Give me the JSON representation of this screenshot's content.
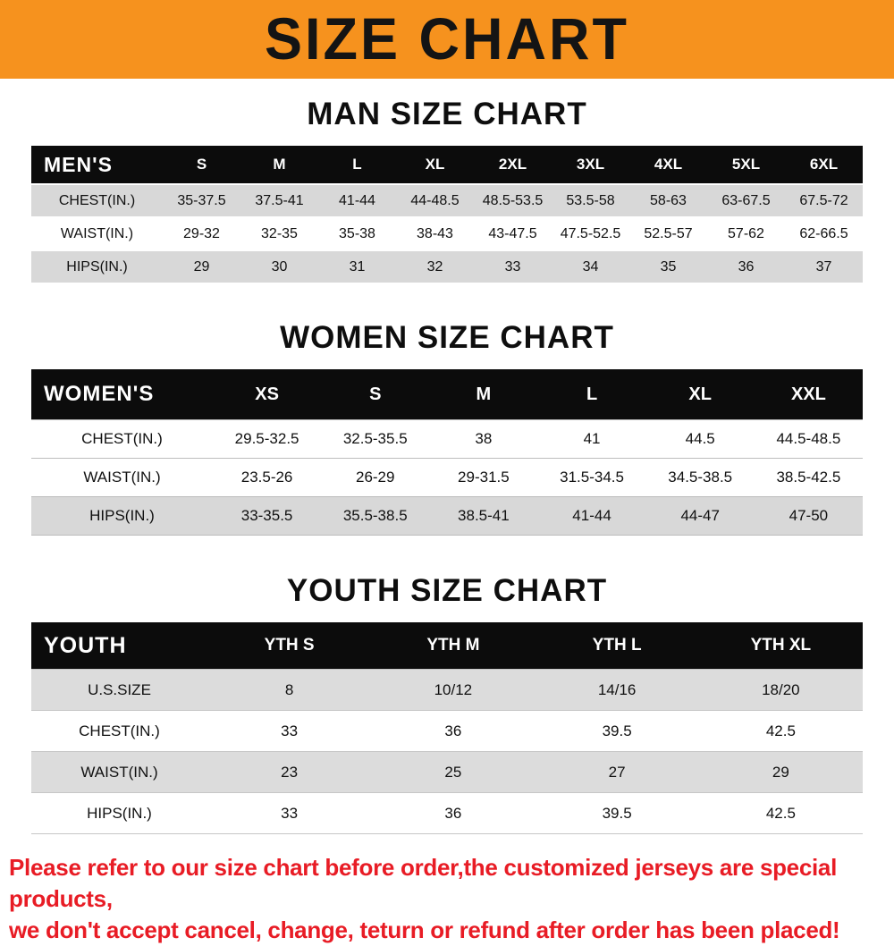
{
  "banner": {
    "title": "SIZE CHART",
    "bg_color": "#f6921e"
  },
  "chart_data": [
    {
      "type": "table",
      "title": "MAN SIZE CHART",
      "header": [
        "MEN'S",
        "S",
        "M",
        "L",
        "XL",
        "2XL",
        "3XL",
        "4XL",
        "5XL",
        "6XL"
      ],
      "rows": [
        [
          "CHEST(IN.)",
          "35-37.5",
          "37.5-41",
          "41-44",
          "44-48.5",
          "48.5-53.5",
          "53.5-58",
          "58-63",
          "63-67.5",
          "67.5-72"
        ],
        [
          "WAIST(IN.)",
          "29-32",
          "32-35",
          "35-38",
          "38-43",
          "43-47.5",
          "47.5-52.5",
          "52.5-57",
          "57-62",
          "62-66.5"
        ],
        [
          "HIPS(IN.)",
          "29",
          "30",
          "31",
          "32",
          "33",
          "34",
          "35",
          "36",
          "37"
        ]
      ]
    },
    {
      "type": "table",
      "title": "WOMEN SIZE CHART",
      "header": [
        "WOMEN'S",
        "XS",
        "S",
        "M",
        "L",
        "XL",
        "XXL"
      ],
      "rows": [
        [
          "CHEST(IN.)",
          "29.5-32.5",
          "32.5-35.5",
          "38",
          "41",
          "44.5",
          "44.5-48.5"
        ],
        [
          "WAIST(IN.)",
          "23.5-26",
          "26-29",
          "29-31.5",
          "31.5-34.5",
          "34.5-38.5",
          "38.5-42.5"
        ],
        [
          "HIPS(IN.)",
          "33-35.5",
          "35.5-38.5",
          "38.5-41",
          "41-44",
          "44-47",
          "47-50"
        ]
      ]
    },
    {
      "type": "table",
      "title": "YOUTH SIZE CHART",
      "header": [
        "YOUTH",
        "YTH S",
        "YTH M",
        "YTH L",
        "YTH XL"
      ],
      "rows": [
        [
          "U.S.SIZE",
          "8",
          "10/12",
          "14/16",
          "18/20"
        ],
        [
          "CHEST(IN.)",
          "33",
          "36",
          "39.5",
          "42.5"
        ],
        [
          "WAIST(IN.)",
          "23",
          "25",
          "27",
          "29"
        ],
        [
          "HIPS(IN.)",
          "33",
          "36",
          "39.5",
          "42.5"
        ]
      ]
    }
  ],
  "footer": {
    "line1": "Please refer to our size chart before order,the customized jerseys are special products,",
    "line2": "we don't accept cancel, change, teturn or refund after order has been placed!",
    "text_color": "#e81c25"
  }
}
